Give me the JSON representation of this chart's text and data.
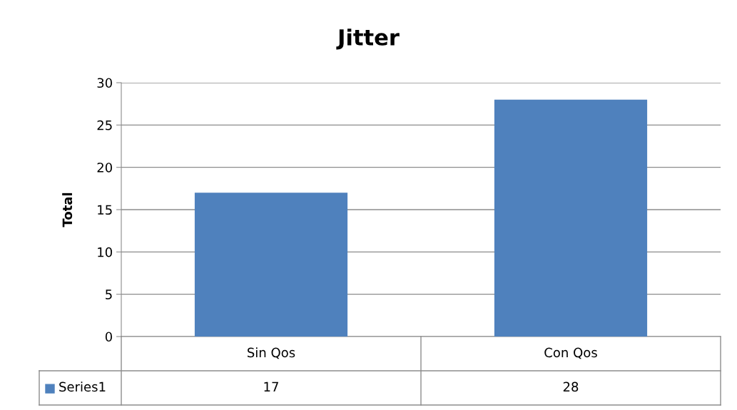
{
  "chart_data": {
    "type": "bar",
    "title": "Jitter",
    "ylabel": "Total",
    "categories": [
      "Sin Qos",
      "Con Qos"
    ],
    "series": [
      {
        "name": "Series1",
        "color": "#4f81bd",
        "values": [
          17,
          28
        ]
      }
    ],
    "ylim": [
      0,
      30
    ],
    "yticks": [
      0,
      5,
      10,
      15,
      20,
      25,
      30
    ],
    "grid": "y",
    "data_labels": true,
    "legend": "bottom left"
  }
}
